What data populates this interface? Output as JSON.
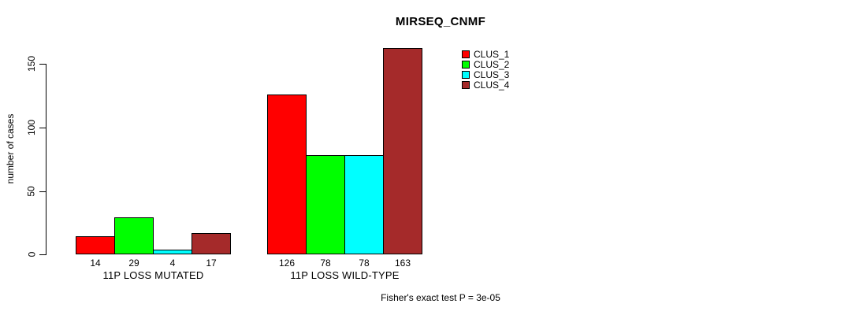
{
  "chart_data": {
    "type": "bar",
    "title": "MIRSEQ_CNMF",
    "ylabel": "number of cases",
    "xlabel": "",
    "annotation": "Fisher's exact test P = 3e-05",
    "categories": [
      "11P LOSS MUTATED",
      "11P LOSS WILD-TYPE"
    ],
    "series": [
      {
        "name": "CLUS_1",
        "color": "#ff0000",
        "values": [
          14,
          126
        ]
      },
      {
        "name": "CLUS_2",
        "color": "#00ff00",
        "values": [
          29,
          78
        ]
      },
      {
        "name": "CLUS_3",
        "color": "#00ffff",
        "values": [
          4,
          78
        ]
      },
      {
        "name": "CLUS_4",
        "color": "#a52a2a",
        "values": [
          17,
          163
        ]
      }
    ],
    "yticks": [
      0,
      50,
      100,
      150
    ],
    "ylim": [
      0,
      163
    ],
    "grid": false,
    "bar_value_labels": true,
    "legend_position": "top-right-inside"
  }
}
